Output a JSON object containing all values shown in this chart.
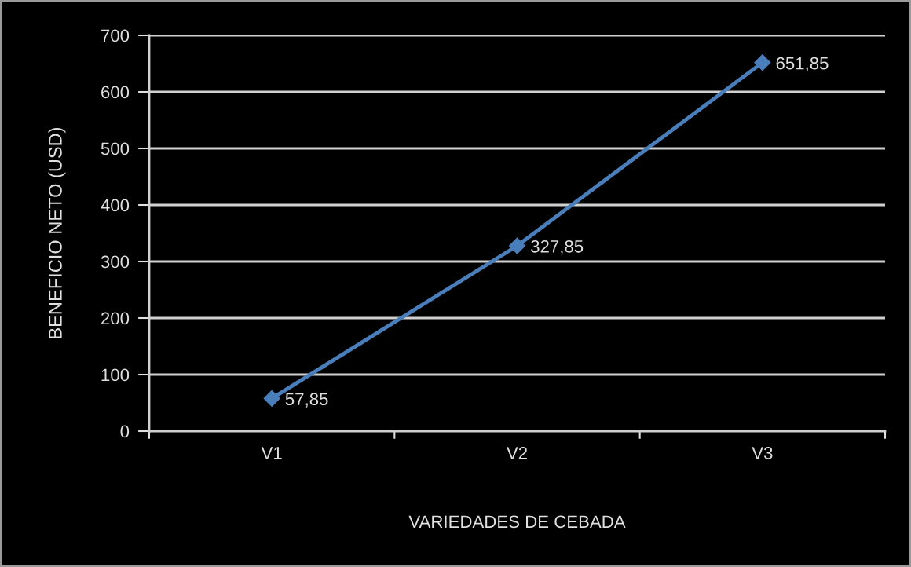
{
  "chart_data": {
    "type": "line",
    "xlabel": "VARIEDADES DE CEBADA",
    "ylabel": "BENEFICIO NETO (USD)",
    "categories": [
      "V1",
      "V2",
      "V3"
    ],
    "series": [
      {
        "color": "#4a7ebb",
        "values": [
          57.85,
          327.85,
          651.85
        ],
        "value_labels": [
          "57,85",
          "327,85",
          "651,85"
        ]
      }
    ],
    "ylim": [
      0,
      700
    ],
    "yticks": [
      0,
      100,
      200,
      300,
      400,
      500,
      600,
      700
    ],
    "grid": "y",
    "marker": "diamond",
    "line_style": "solid"
  }
}
